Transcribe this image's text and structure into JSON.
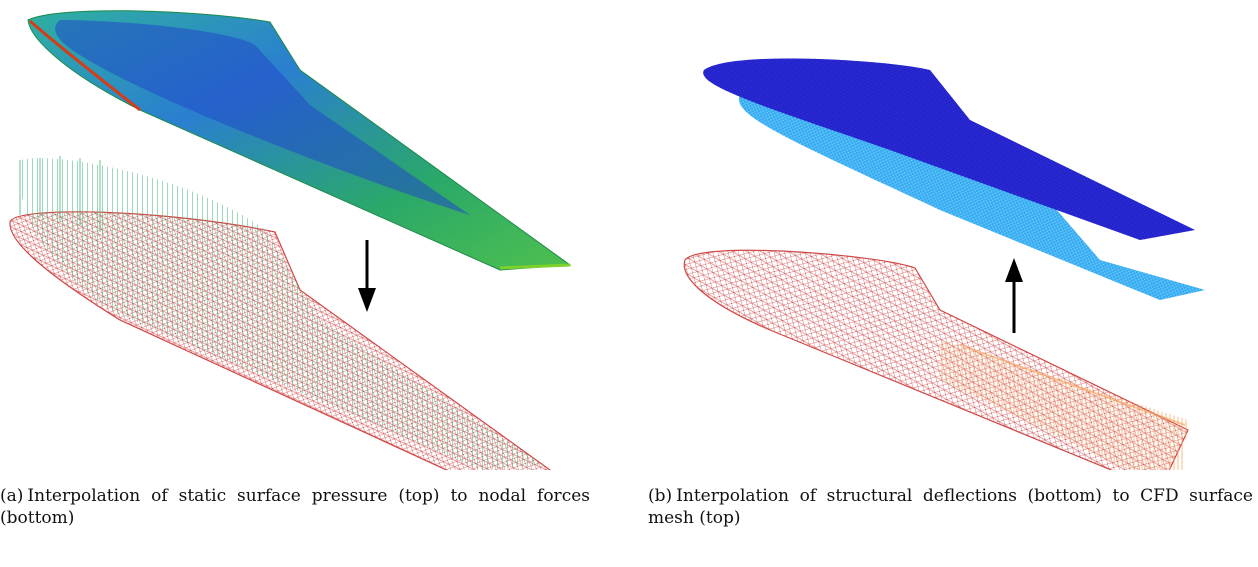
{
  "subfigures": [
    {
      "label": "(a)",
      "caption": "Interpolation of static surface pressure (top) to nodal forces (bottom)",
      "top_mesh": "CFD pressure contour wing",
      "bottom_mesh": "structural nodal force mesh",
      "arrow_direction": "down",
      "colors": {
        "contour_high": "#1f3fd0",
        "contour_mid": "#2aa86a",
        "contour_low": "#d63b1a",
        "mesh": "#d04848",
        "force_arrows": "#3cb878"
      }
    },
    {
      "label": "(b)",
      "caption": "Interpolation of structural deflections (bottom) to CFD surface mesh (top)",
      "top_mesh": "CFD surface mesh",
      "bottom_mesh": "structural deflection mesh",
      "arrow_direction": "up",
      "colors": {
        "mesh_dark": "#2a2ad8",
        "mesh_light": "#33aaf0",
        "mesh": "#d04848",
        "deflection": "#f6a35c"
      }
    }
  ]
}
